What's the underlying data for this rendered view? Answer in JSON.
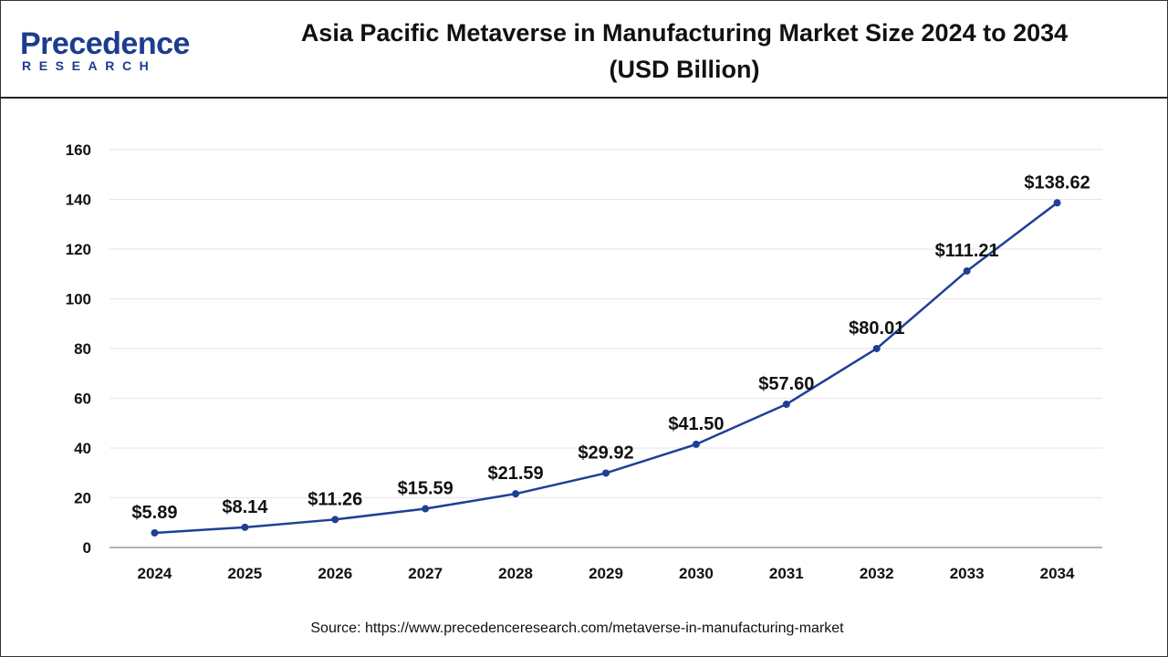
{
  "header": {
    "logo_main": "Precedence",
    "logo_sub": "RESEARCH",
    "title_line1": "Asia Pacific Metaverse in Manufacturing Market Size 2024 to 2034",
    "title_line2": "(USD Billion)"
  },
  "colors": {
    "line": "#1f3f96",
    "brand": "#1d3c8f",
    "grid": "#e6e6e6",
    "axis": "#9a9a9a"
  },
  "chart_data": {
    "type": "line",
    "title": "Asia Pacific Metaverse in Manufacturing Market Size 2024 to 2034 (USD Billion)",
    "xlabel": "",
    "ylabel": "",
    "categories": [
      "2024",
      "2025",
      "2026",
      "2027",
      "2028",
      "2029",
      "2030",
      "2031",
      "2032",
      "2033",
      "2034"
    ],
    "series": [
      {
        "values": [
          5.89,
          8.14,
          11.26,
          15.59,
          21.59,
          29.92,
          41.5,
          57.6,
          80.01,
          111.21,
          138.62
        ],
        "labels": [
          "$5.89",
          "$8.14",
          "$11.26",
          "$15.59",
          "$21.59",
          "$29.92",
          "$41.50",
          "$57.60",
          "$80.01",
          "$111.21",
          "$138.62"
        ]
      }
    ],
    "ylim": [
      0,
      160
    ],
    "yticks": [
      "0",
      "20",
      "40",
      "60",
      "80",
      "100",
      "120",
      "140",
      "160"
    ],
    "grid": true,
    "legend": "none"
  },
  "source": "Source: https://www.precedenceresearch.com/metaverse-in-manufacturing-market"
}
